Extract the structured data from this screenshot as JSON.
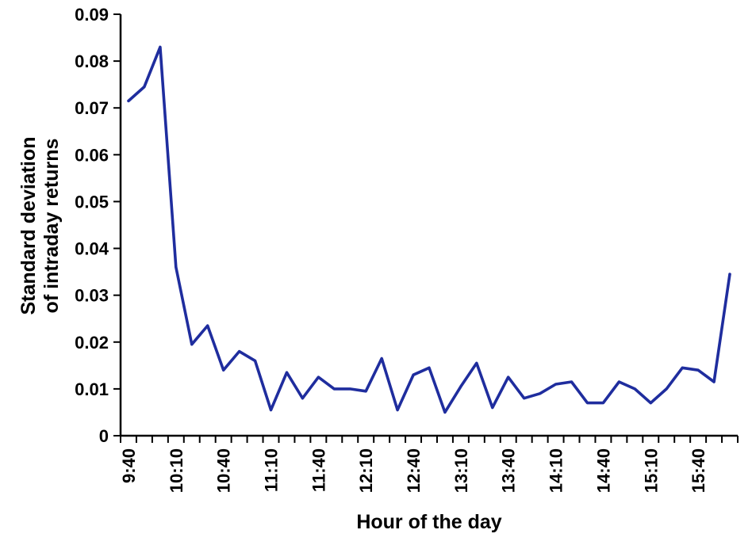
{
  "chart_data": {
    "type": "line",
    "title": "",
    "xlabel": "Hour of the day",
    "ylabel": "Standard deviation\nof intraday returns",
    "x": [
      "9:40",
      "9:50",
      "10:00",
      "10:10",
      "10:20",
      "10:30",
      "10:40",
      "10:50",
      "11:00",
      "11:10",
      "11:20",
      "11:30",
      "11:40",
      "11:50",
      "12:00",
      "12:10",
      "12:20",
      "12:30",
      "12:40",
      "12:50",
      "13:00",
      "13:10",
      "13:20",
      "13:30",
      "13:40",
      "13:50",
      "14:00",
      "14:10",
      "14:20",
      "14:30",
      "14:40",
      "14:50",
      "15:00",
      "15:10",
      "15:20",
      "15:30",
      "15:40",
      "15:50",
      "16:00"
    ],
    "values": [
      0.0715,
      0.0745,
      0.083,
      0.036,
      0.0195,
      0.0235,
      0.014,
      0.018,
      0.016,
      0.0055,
      0.0135,
      0.008,
      0.0125,
      0.01,
      0.01,
      0.0095,
      0.0165,
      0.0055,
      0.013,
      0.0145,
      0.005,
      0.0105,
      0.0155,
      0.006,
      0.0125,
      0.008,
      0.009,
      0.011,
      0.0115,
      0.007,
      0.007,
      0.0115,
      0.01,
      0.007,
      0.01,
      0.0145,
      0.014,
      0.0115,
      0.0345
    ],
    "x_label_every": 3,
    "x_tick_labels_shown": [
      "9:40",
      "10:10",
      "10:40",
      "11:10",
      "11:40",
      "12:10",
      "12:40",
      "13:10",
      "13:40",
      "14:10",
      "14:40",
      "15:10",
      "15:40"
    ],
    "ylim": [
      0,
      0.09
    ],
    "ytick_step": 0.01,
    "yticks": [
      "0",
      "0.01",
      "0.02",
      "0.03",
      "0.04",
      "0.05",
      "0.06",
      "0.07",
      "0.08",
      "0.09"
    ],
    "line_color": "#1f2d9e",
    "axis_color": "#000000",
    "grid": false,
    "legend": false
  }
}
